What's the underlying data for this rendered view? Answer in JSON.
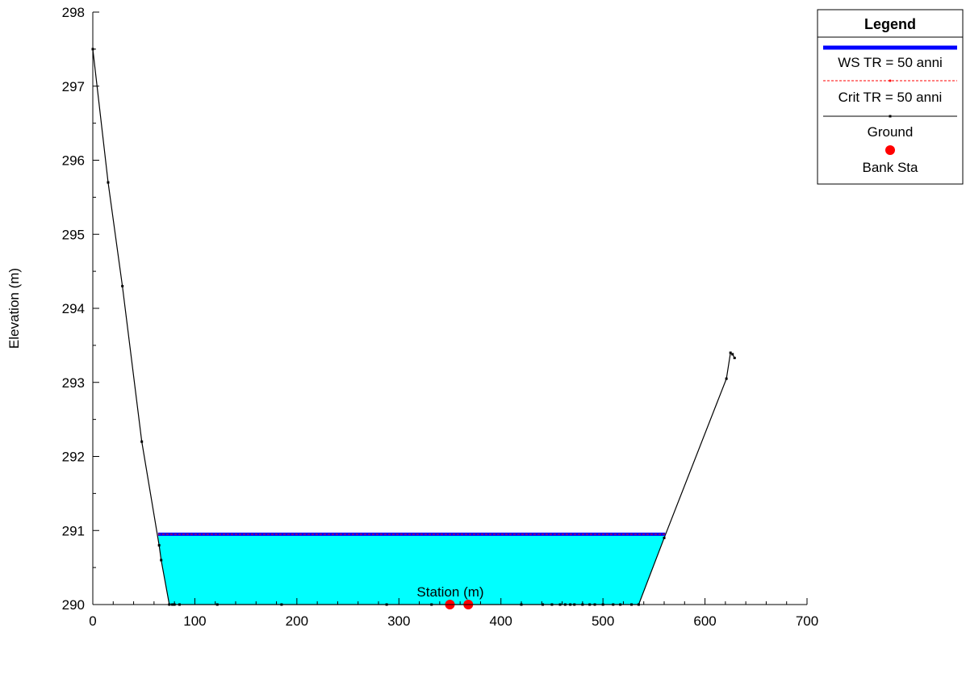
{
  "chart_data": {
    "type": "line",
    "title": "",
    "xlabel": "Station (m)",
    "ylabel": "Elevation (m)",
    "xlim": [
      0,
      700
    ],
    "ylim": [
      290,
      298
    ],
    "x_ticks": [
      0,
      100,
      200,
      300,
      400,
      500,
      600,
      700
    ],
    "y_ticks": [
      290,
      291,
      292,
      293,
      294,
      295,
      296,
      297,
      298
    ],
    "grid": false,
    "legend": {
      "title": "Legend",
      "placement": "top-right",
      "entries": [
        {
          "label": "WS TR = 50 anni",
          "color": "#0000ff",
          "style": "thick-line"
        },
        {
          "label": "Crit TR = 50 anni",
          "color": "#ff0000",
          "style": "dotted-line"
        },
        {
          "label": "Ground",
          "color": "#000000",
          "style": "line-with-markers"
        },
        {
          "label": "Bank Sta",
          "color": "#ff0000",
          "style": "circle-marker"
        }
      ]
    },
    "series": [
      {
        "name": "Ground",
        "color": "#000000",
        "points": [
          [
            0,
            297.5
          ],
          [
            15,
            295.7
          ],
          [
            29,
            294.3
          ],
          [
            48,
            292.2
          ],
          [
            65,
            290.8
          ],
          [
            67,
            290.6
          ],
          [
            75,
            290.0
          ],
          [
            78,
            290.0
          ],
          [
            80,
            290.0
          ],
          [
            85,
            290.0
          ],
          [
            122,
            290.0
          ],
          [
            185,
            290.0
          ],
          [
            288,
            290.0
          ],
          [
            332,
            290.0
          ],
          [
            350,
            290.0
          ],
          [
            368,
            290.0
          ],
          [
            420,
            290.0
          ],
          [
            441,
            290.0
          ],
          [
            450,
            290.0
          ],
          [
            458,
            290.0
          ],
          [
            463,
            290.0
          ],
          [
            468,
            290.0
          ],
          [
            472,
            290.0
          ],
          [
            480,
            290.0
          ],
          [
            487,
            290.0
          ],
          [
            492,
            290.0
          ],
          [
            500,
            290.0
          ],
          [
            510,
            290.0
          ],
          [
            517,
            290.0
          ],
          [
            528,
            290.0
          ],
          [
            535,
            290.0
          ],
          [
            560,
            290.9
          ],
          [
            621,
            293.05
          ],
          [
            625,
            293.4
          ],
          [
            627,
            293.38
          ],
          [
            629,
            293.33
          ]
        ]
      },
      {
        "name": "WS TR = 50 anni",
        "color": "#0000ff",
        "elevation": 290.95,
        "x_start": 64,
        "x_end": 561
      },
      {
        "name": "Crit TR = 50 anni",
        "color": "#ff0000",
        "elevation": 290.95,
        "x_start": 64,
        "x_end": 561
      },
      {
        "name": "Bank Sta",
        "color": "#ff0000",
        "points": [
          [
            350,
            290.0
          ],
          [
            368,
            290.0
          ]
        ]
      }
    ],
    "water_fill_color": "#00ffff"
  }
}
